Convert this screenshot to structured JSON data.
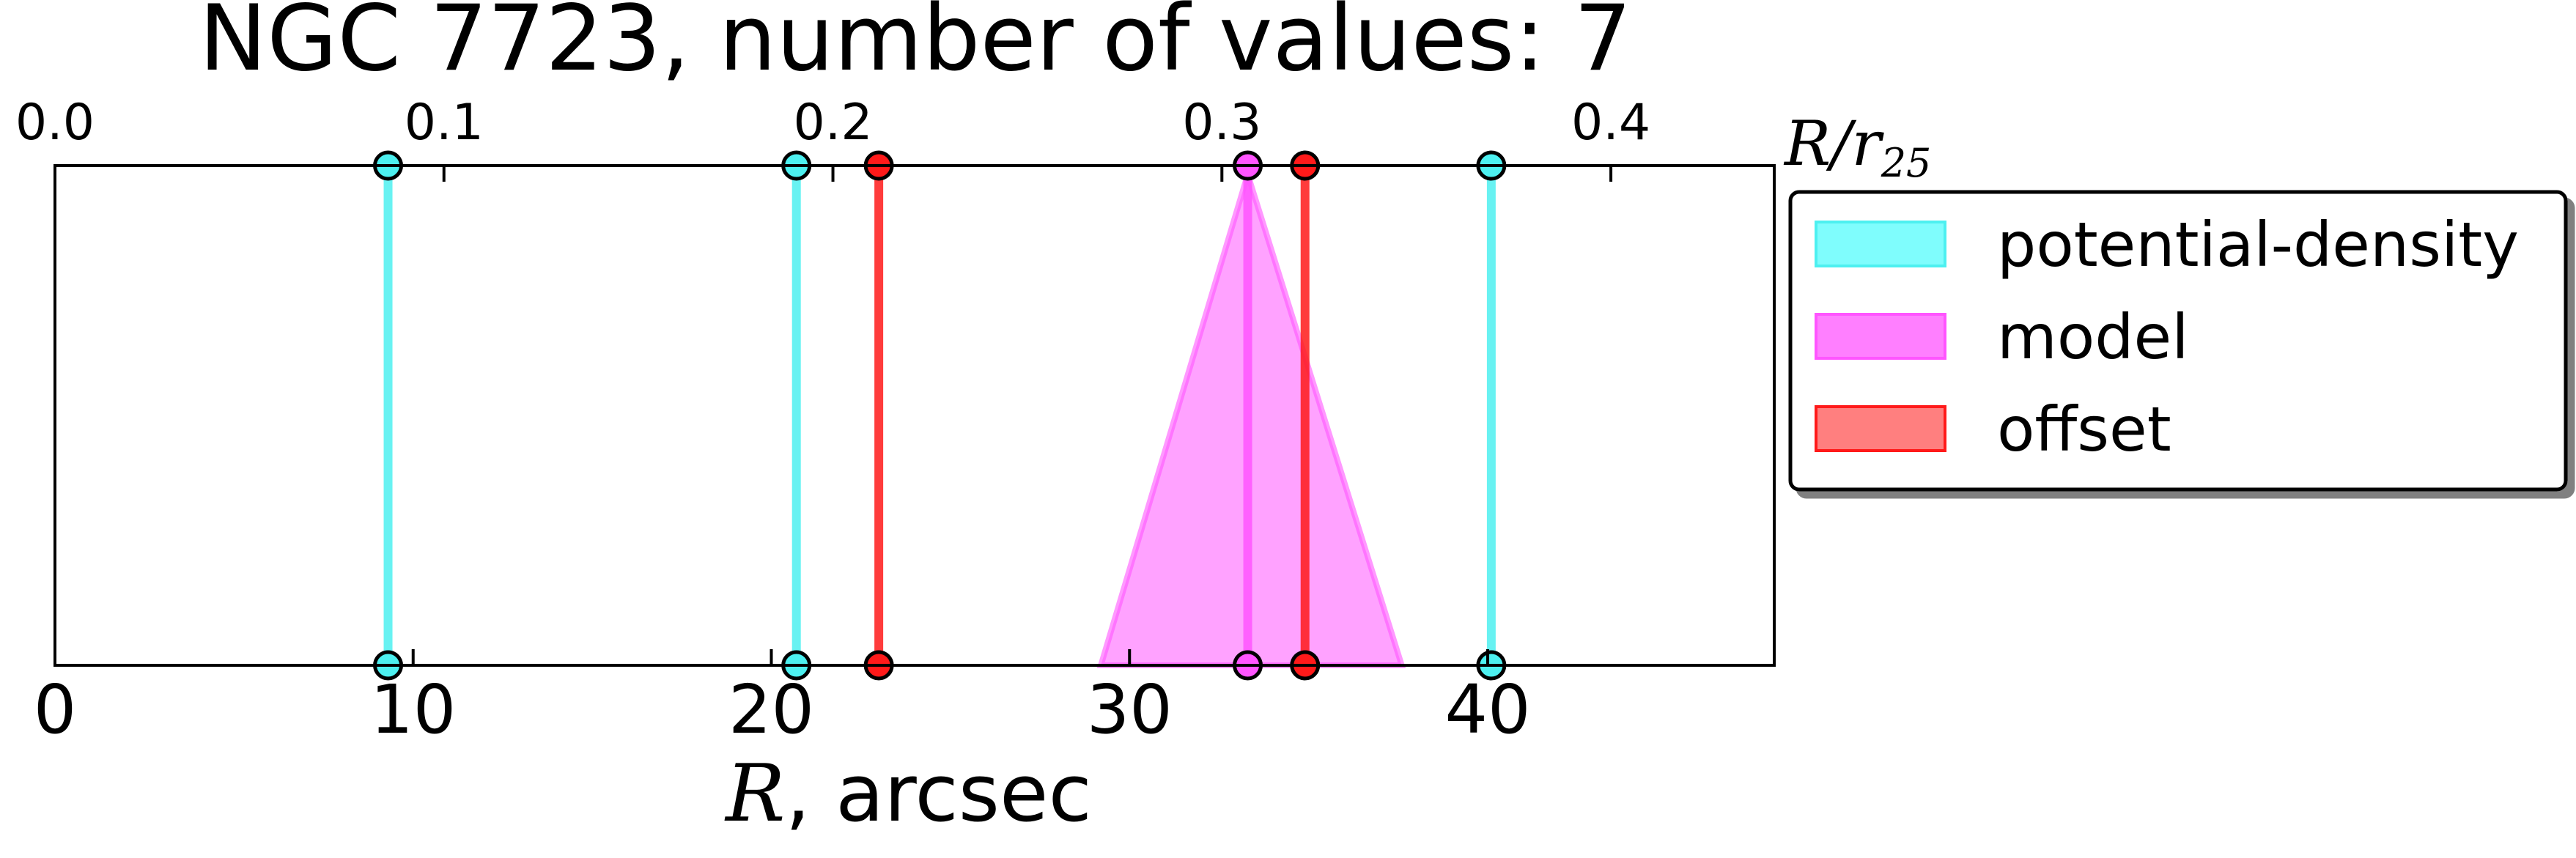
{
  "chart_data": {
    "type": "line",
    "title": "NGC 7723, number of values: 7",
    "xlabel_symbol": "R",
    "xlabel_unit": ", arcsec",
    "top_xlabel_symbol": "R/r",
    "top_xlabel_subscript": "25",
    "xlim": [
      0,
      48
    ],
    "top_xlim": [
      0.0,
      0.442
    ],
    "x_ticks": [
      0,
      10,
      20,
      30,
      40
    ],
    "top_x_ticks": [
      "0.0",
      "0.1",
      "0.2",
      "0.3",
      "0.4"
    ],
    "top_x_tick_values": [
      0.0,
      0.1,
      0.2,
      0.3,
      0.4
    ],
    "grid": false,
    "legend_position": "right",
    "series": [
      {
        "name": "potential-density",
        "color": "#4df0f0",
        "style": "vertical-lines",
        "x": [
          9.3,
          20.7,
          40.1
        ]
      },
      {
        "name": "model",
        "color": "#ff55ff",
        "style": "vertical-line-with-triangle",
        "x": [
          33.3
        ],
        "band": [
          29.2,
          37.6
        ]
      },
      {
        "name": "offset",
        "color": "#ff1a1a",
        "style": "vertical-lines",
        "x": [
          23.0,
          34.9
        ]
      }
    ],
    "legend_swatches": {
      "potential-density": "#7ffdfd",
      "model": "#ff7fff",
      "offset": "#ff7f7f"
    }
  }
}
